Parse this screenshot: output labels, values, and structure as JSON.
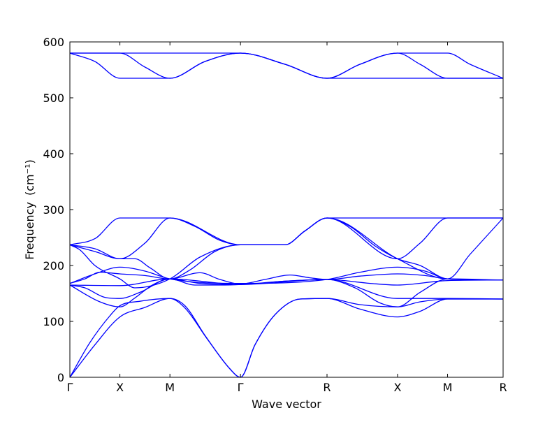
{
  "chart_data": {
    "type": "line",
    "title": "",
    "xlabel": "Wave vector",
    "ylabel": "Frequency",
    "ylabel_unit": "(cm⁻¹)",
    "ylim": [
      0,
      600
    ],
    "yticks": [
      0,
      100,
      200,
      300,
      400,
      500,
      600
    ],
    "xlim": [
      0,
      8.66
    ],
    "xticks": [
      {
        "label": "Γ",
        "x": 0
      },
      {
        "label": "X",
        "x": 1
      },
      {
        "label": "M",
        "x": 2
      },
      {
        "label": "Γ",
        "x": 3.41
      },
      {
        "label": "R",
        "x": 5.14
      },
      {
        "label": "X",
        "x": 6.55
      },
      {
        "label": "M",
        "x": 7.55
      },
      {
        "label": "R",
        "x": 8.66
      }
    ],
    "line_color": "#0000ff",
    "grid": false,
    "legend": "none",
    "series": [
      {
        "points": [
          [
            0,
            0
          ],
          [
            0.5,
            58
          ],
          [
            1,
            108
          ],
          [
            1.5,
            125
          ],
          [
            2,
            141
          ],
          [
            2.3,
            128
          ],
          [
            2.7,
            75
          ],
          [
            3.2,
            15
          ],
          [
            3.41,
            0
          ],
          [
            3.7,
            58
          ],
          [
            4.1,
            112
          ],
          [
            4.6,
            140
          ],
          [
            5.14,
            141
          ],
          [
            5.8,
            122
          ],
          [
            6.55,
            108
          ],
          [
            7.0,
            118
          ],
          [
            7.55,
            140
          ],
          [
            8.66,
            140
          ]
        ]
      },
      {
        "points": [
          [
            0,
            0
          ],
          [
            0.4,
            62
          ],
          [
            0.8,
            110
          ],
          [
            1,
            128
          ],
          [
            1.4,
            136
          ],
          [
            2,
            141
          ],
          [
            2.3,
            124
          ],
          [
            2.75,
            68
          ],
          [
            3.2,
            15
          ],
          [
            3.41,
            0
          ],
          [
            3.7,
            58
          ],
          [
            4.1,
            112
          ],
          [
            4.6,
            140
          ],
          [
            5.14,
            141
          ],
          [
            5.8,
            130
          ],
          [
            6.55,
            126
          ],
          [
            7.0,
            135
          ],
          [
            7.55,
            140
          ],
          [
            8.66,
            140
          ]
        ]
      },
      {
        "points": [
          [
            0,
            165
          ],
          [
            0.6,
            135
          ],
          [
            1,
            126
          ],
          [
            1.3,
            142
          ],
          [
            1.65,
            165
          ],
          [
            2,
            176
          ],
          [
            2.6,
            168
          ],
          [
            3.41,
            166
          ],
          [
            4.3,
            172
          ],
          [
            5.14,
            175
          ],
          [
            5.7,
            160
          ],
          [
            6.2,
            133
          ],
          [
            6.55,
            126
          ],
          [
            7.0,
            152
          ],
          [
            7.55,
            176
          ],
          [
            8.66,
            174
          ]
        ]
      },
      {
        "points": [
          [
            0,
            165
          ],
          [
            0.3,
            160
          ],
          [
            0.7,
            143
          ],
          [
            1,
            141
          ],
          [
            1.4,
            152
          ],
          [
            2,
            176
          ],
          [
            2.5,
            165
          ],
          [
            3.0,
            165
          ],
          [
            3.41,
            166
          ],
          [
            4.3,
            172
          ],
          [
            5.14,
            175
          ],
          [
            6.55,
            141
          ],
          [
            7.55,
            141
          ],
          [
            8.66,
            140
          ]
        ]
      },
      {
        "points": [
          [
            0,
            165
          ],
          [
            1,
            164
          ],
          [
            2,
            176
          ],
          [
            3.41,
            166
          ],
          [
            5.14,
            175
          ],
          [
            6.0,
            168
          ],
          [
            6.55,
            165
          ],
          [
            7.55,
            173
          ],
          [
            8.66,
            174
          ]
        ]
      },
      {
        "points": [
          [
            0,
            168
          ],
          [
            0.3,
            176
          ],
          [
            0.6,
            188
          ],
          [
            1,
            185
          ],
          [
            1.5,
            182
          ],
          [
            2,
            176
          ],
          [
            2.6,
            187
          ],
          [
            3.0,
            175
          ],
          [
            3.41,
            167
          ],
          [
            3.9,
            175
          ],
          [
            4.4,
            183
          ],
          [
            4.8,
            178
          ],
          [
            5.14,
            175
          ],
          [
            5.8,
            181
          ],
          [
            6.55,
            185
          ],
          [
            7.1,
            182
          ],
          [
            7.55,
            176
          ],
          [
            8.66,
            174
          ]
        ]
      },
      {
        "points": [
          [
            0,
            168
          ],
          [
            0.5,
            185
          ],
          [
            1,
            197
          ],
          [
            1.5,
            190
          ],
          [
            2,
            176
          ],
          [
            3.41,
            168
          ],
          [
            5.14,
            175
          ],
          [
            5.8,
            188
          ],
          [
            6.55,
            197
          ],
          [
            7.1,
            190
          ],
          [
            7.55,
            176
          ],
          [
            8.66,
            174
          ]
        ]
      },
      {
        "points": [
          [
            0,
            237
          ],
          [
            0.5,
            225
          ],
          [
            1,
            212
          ],
          [
            1.3,
            212
          ],
          [
            1.6,
            196
          ],
          [
            2,
            176
          ],
          [
            2.4,
            192
          ],
          [
            2.9,
            225
          ],
          [
            3.41,
            237
          ],
          [
            4.3,
            237
          ],
          [
            4.7,
            262
          ],
          [
            5.14,
            285
          ],
          [
            5.6,
            270
          ],
          [
            6.1,
            235
          ],
          [
            6.55,
            212
          ],
          [
            7.0,
            200
          ],
          [
            7.55,
            176
          ],
          [
            8.66,
            174
          ]
        ]
      },
      {
        "points": [
          [
            0,
            237
          ],
          [
            0.5,
            248
          ],
          [
            1,
            285
          ],
          [
            2,
            285
          ],
          [
            3.41,
            237
          ],
          [
            4.3,
            237
          ],
          [
            4.7,
            262
          ],
          [
            5.14,
            285
          ],
          [
            6.55,
            285
          ],
          [
            7.55,
            285
          ],
          [
            8.66,
            285
          ]
        ]
      },
      {
        "points": [
          [
            0,
            237
          ],
          [
            0.5,
            230
          ],
          [
            1,
            212
          ],
          [
            1.5,
            240
          ],
          [
            2,
            285
          ],
          [
            2.5,
            270
          ],
          [
            3.0,
            245
          ],
          [
            3.41,
            237
          ],
          [
            4.3,
            237
          ],
          [
            4.7,
            262
          ],
          [
            5.14,
            285
          ],
          [
            6.55,
            212
          ],
          [
            7.0,
            240
          ],
          [
            7.55,
            285
          ],
          [
            8.66,
            285
          ]
        ]
      },
      {
        "points": [
          [
            0,
            237
          ],
          [
            0.2,
            228
          ],
          [
            0.5,
            200
          ],
          [
            1,
            176
          ],
          [
            1.3,
            160
          ],
          [
            2,
            176
          ],
          [
            2.6,
            215
          ],
          [
            3.41,
            237
          ],
          [
            4.3,
            237
          ],
          [
            4.7,
            262
          ],
          [
            5.14,
            285
          ],
          [
            6.55,
            212
          ],
          [
            7.55,
            176
          ],
          [
            8.0,
            220
          ],
          [
            8.66,
            285
          ]
        ]
      },
      {
        "points": [
          [
            0,
            580
          ],
          [
            0.5,
            565
          ],
          [
            1,
            535
          ],
          [
            2,
            535
          ],
          [
            2.7,
            565
          ],
          [
            3.41,
            580
          ],
          [
            4.3,
            560
          ],
          [
            5.14,
            535
          ],
          [
            5.8,
            560
          ],
          [
            6.55,
            580
          ],
          [
            7.55,
            580
          ],
          [
            8.0,
            560
          ],
          [
            8.66,
            535
          ]
        ]
      },
      {
        "points": [
          [
            0,
            580
          ],
          [
            1,
            580
          ],
          [
            1.5,
            555
          ],
          [
            2,
            535
          ],
          [
            2.7,
            565
          ],
          [
            3.41,
            580
          ],
          [
            4.3,
            560
          ],
          [
            5.14,
            535
          ],
          [
            6.55,
            535
          ],
          [
            7.55,
            535
          ],
          [
            8.66,
            535
          ]
        ]
      },
      {
        "points": [
          [
            0,
            580
          ],
          [
            1,
            580
          ],
          [
            2,
            580
          ],
          [
            3.41,
            580
          ],
          [
            4.3,
            560
          ],
          [
            5.14,
            535
          ],
          [
            5.8,
            560
          ],
          [
            6.55,
            580
          ],
          [
            7.0,
            560
          ],
          [
            7.55,
            535
          ],
          [
            8.66,
            535
          ]
        ]
      }
    ]
  }
}
